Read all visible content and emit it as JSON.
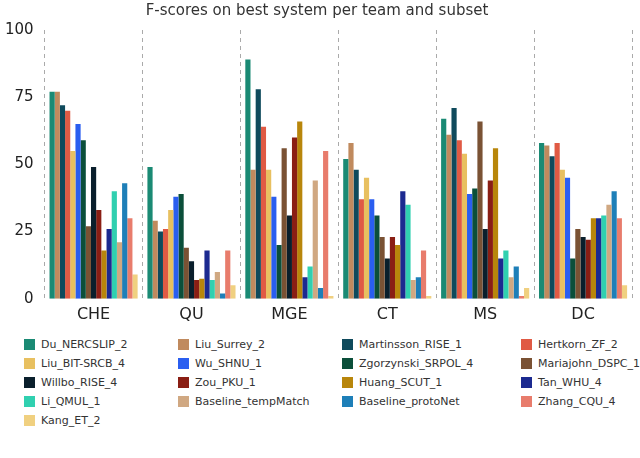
{
  "chart_data": {
    "type": "bar",
    "title": "F-scores on best system per team and subset",
    "categories": [
      "CHE",
      "QU",
      "MGE",
      "CT",
      "MS",
      "DC"
    ],
    "ylim": [
      0,
      100
    ],
    "yticks": [
      0,
      25,
      50,
      75,
      100
    ],
    "grid": true,
    "legend": "bottom",
    "series": [
      {
        "name": "Du_NERCSLIP_2",
        "color": "#1a8a74",
        "values": [
          77,
          49,
          89,
          52,
          67,
          58
        ]
      },
      {
        "name": "Liu_Surrey_2",
        "color": "#c08a5e",
        "values": [
          77,
          29,
          48,
          58,
          61,
          57
        ]
      },
      {
        "name": "Martinsson_RISE_1",
        "color": "#0f4a5c",
        "values": [
          72,
          25,
          78,
          48,
          71,
          53
        ]
      },
      {
        "name": "Hertkorn_ZF_2",
        "color": "#e05a44",
        "values": [
          70,
          26,
          64,
          37,
          59,
          58
        ]
      },
      {
        "name": "Liu_BIT-SRCB_4",
        "color": "#e8c060",
        "values": [
          55,
          33,
          48,
          45,
          54,
          48
        ]
      },
      {
        "name": "Wu_SHNU_1",
        "color": "#2a5ef0",
        "values": [
          65,
          38,
          38,
          37,
          39,
          45
        ]
      },
      {
        "name": "Zgorzynski_SRPOL_4",
        "color": "#0b4f3a",
        "values": [
          59,
          39,
          20,
          31,
          41,
          15
        ]
      },
      {
        "name": "Mariajohn_DSPC_1",
        "color": "#7a5234",
        "values": [
          27,
          19,
          56,
          23,
          66,
          26
        ]
      },
      {
        "name": "Willbo_RISE_4",
        "color": "#0a1f2c",
        "values": [
          49,
          14,
          31,
          15,
          26,
          23
        ]
      },
      {
        "name": "Zou_PKU_1",
        "color": "#8a1e14",
        "values": [
          33,
          7,
          60,
          23,
          44,
          22
        ]
      },
      {
        "name": "Huang_SCUT_1",
        "color": "#b8860b",
        "values": [
          18,
          7.5,
          66,
          20,
          56,
          30
        ]
      },
      {
        "name": "Tan_WHU_4",
        "color": "#1c2a90",
        "values": [
          26,
          18,
          8,
          40,
          15,
          30
        ]
      },
      {
        "name": "Li_QMUL_1",
        "color": "#30d0b0",
        "values": [
          40,
          7,
          12,
          35,
          18,
          31
        ]
      },
      {
        "name": "Baseline_tempMatch",
        "color": "#d0a882",
        "values": [
          21,
          10,
          44,
          7,
          8,
          35
        ]
      },
      {
        "name": "Baseline_protoNet",
        "color": "#1e7fb8",
        "values": [
          43,
          2,
          4,
          8,
          12,
          40
        ]
      },
      {
        "name": "Zhang_CQU_4",
        "color": "#e87c6c",
        "values": [
          30,
          18,
          55,
          18,
          1,
          30
        ]
      },
      {
        "name": "Kang_ET_2",
        "color": "#f0d080",
        "values": [
          9,
          5,
          1,
          1,
          4,
          5
        ]
      }
    ]
  }
}
